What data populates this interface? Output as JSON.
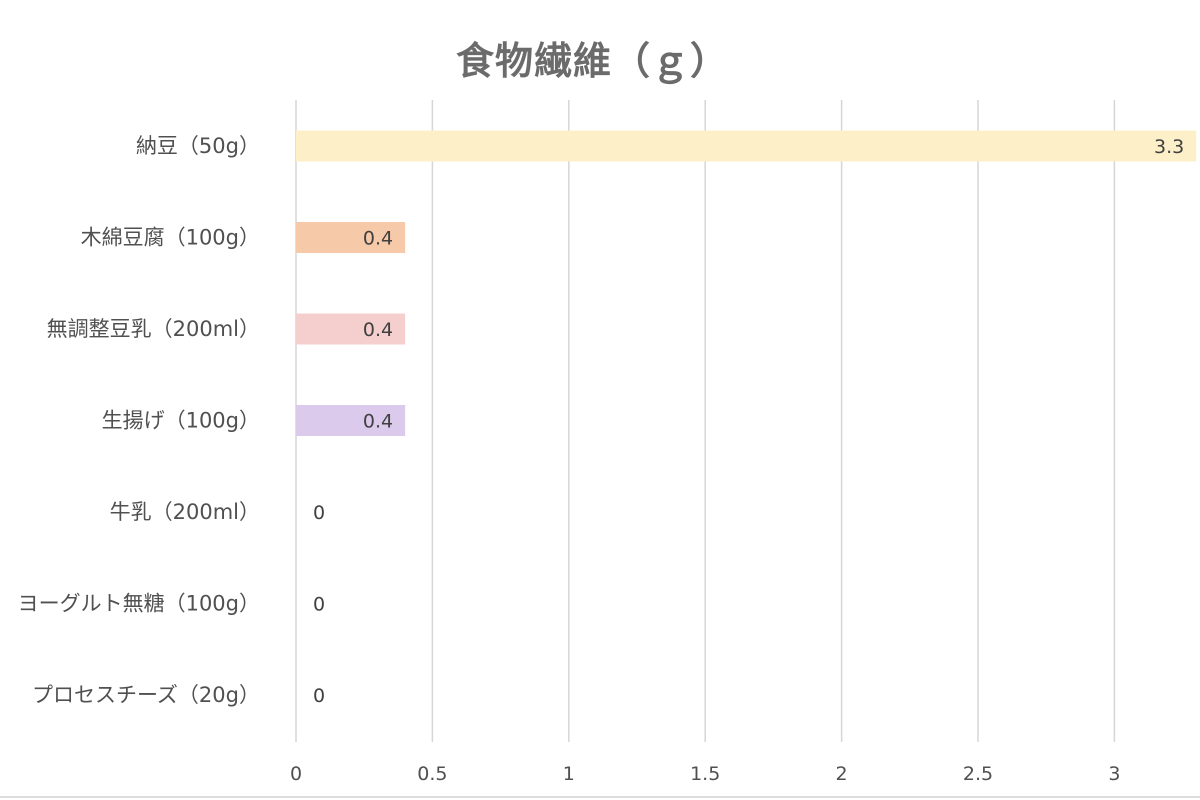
{
  "chart_data": {
    "type": "bar",
    "orientation": "horizontal",
    "title": "食物繊維（ｇ）",
    "categories": [
      "納豆（50g）",
      "木綿豆腐（100g）",
      "無調整豆乳（200ml）",
      "生揚げ（100g）",
      "牛乳（200ml）",
      "ヨーグルト無糖（100g）",
      "プロセスチーズ（20g）"
    ],
    "values": [
      3.3,
      0.4,
      0.4,
      0.4,
      0,
      0,
      0
    ],
    "data_labels": [
      "3.3",
      "0.4",
      "0.4",
      "0.4",
      "0",
      "0",
      "0"
    ],
    "bar_colors": [
      "#fdf0c8",
      "#f6c9a9",
      "#f5cfcd",
      "#dccaed",
      "#dddddd",
      "#dddddd",
      "#dddddd"
    ],
    "xlim": [
      0,
      3.3
    ],
    "xticks": [
      0,
      0.5,
      1,
      1.5,
      2,
      2.5,
      3
    ],
    "xtick_labels": [
      "0",
      "0.5",
      "1",
      "1.5",
      "2",
      "2.5",
      "3"
    ],
    "xlabel": "",
    "ylabel": "",
    "grid": true,
    "legend": "none"
  }
}
